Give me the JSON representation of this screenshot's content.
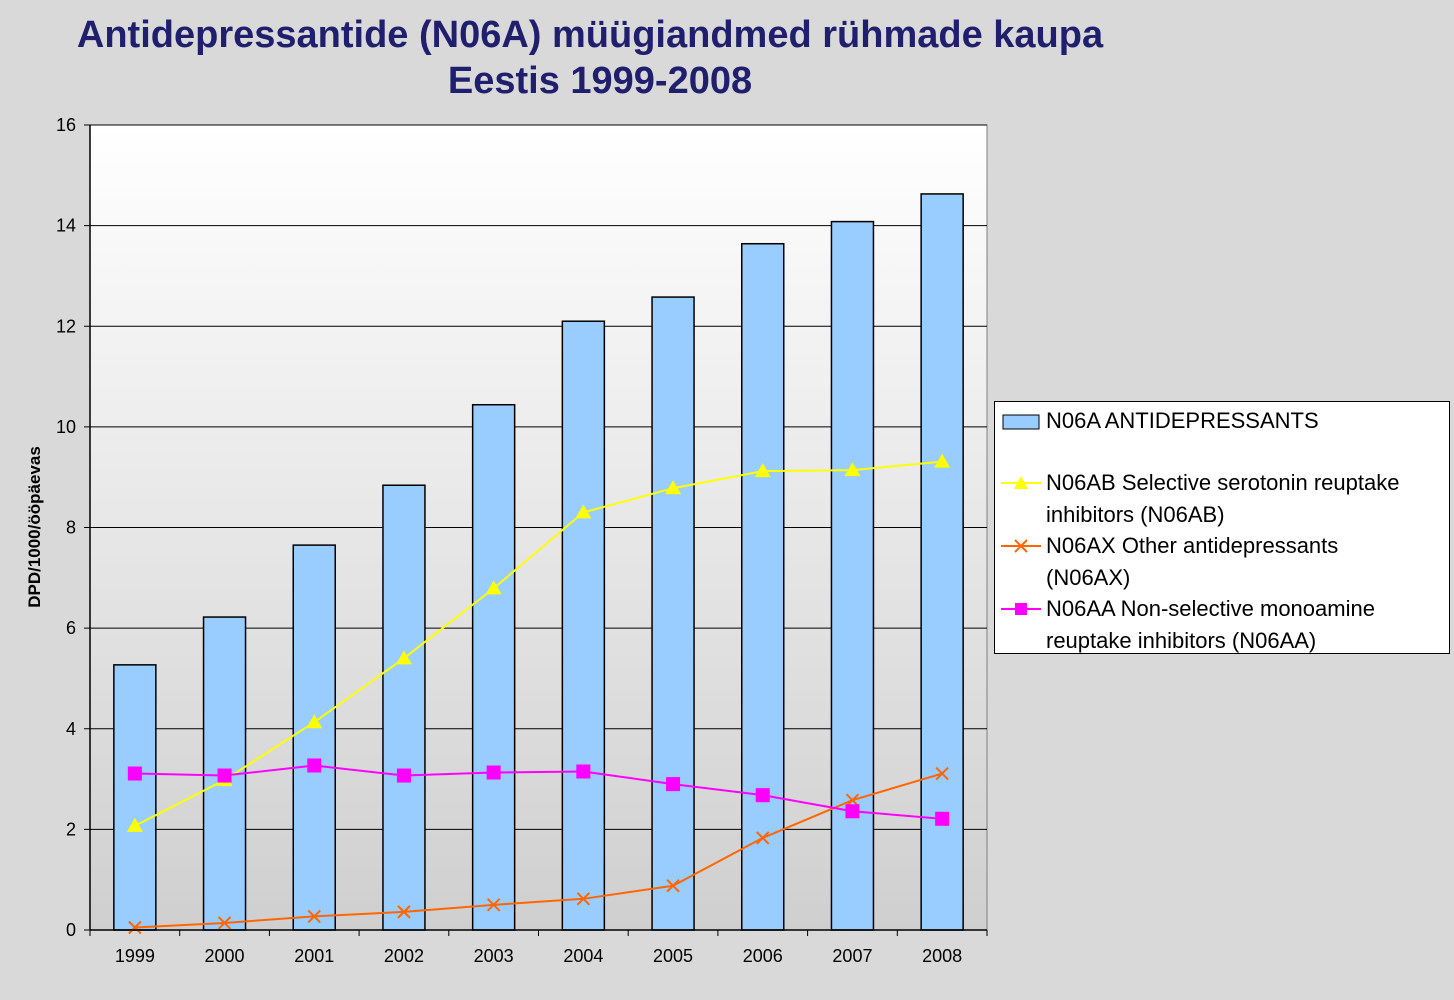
{
  "title": {
    "line1": "Antidepressantide (N06A) müügiandmed rühmade kaupa",
    "line2": "Eestis 1999-2008"
  },
  "colors": {
    "bar_fill": "#99ccff",
    "ssri": "#ffff00",
    "other": "#ff6600",
    "nonsel": "#ff00ff",
    "background": "#d9d9d9"
  },
  "chart_data": {
    "type": "bar",
    "ylabel": "DPD/1000/ööpäevas",
    "ylim": [
      0,
      16
    ],
    "yticks": [
      0,
      2,
      4,
      6,
      8,
      10,
      12,
      14,
      16
    ],
    "categories": [
      "1999",
      "2000",
      "2001",
      "2002",
      "2003",
      "2004",
      "2005",
      "2006",
      "2007",
      "2008"
    ],
    "grid": true,
    "legend_position": "right",
    "series": [
      {
        "name": "N06A ANTIDEPRESSANTS",
        "type": "bar",
        "color": "#99ccff",
        "values": [
          5.27,
          6.22,
          7.65,
          8.84,
          10.44,
          12.1,
          12.58,
          13.64,
          14.08,
          14.63
        ]
      },
      {
        "name": "N06AB Selective serotonin reuptake inhibitors (N06AB)",
        "type": "line",
        "marker": "triangle",
        "color": "#ffff00",
        "values": [
          2.07,
          2.98,
          4.13,
          5.4,
          6.79,
          8.3,
          8.78,
          9.12,
          9.14,
          9.31
        ]
      },
      {
        "name": "N06AX Other antidepressants (N06AX)",
        "type": "line",
        "marker": "x",
        "color": "#ff6600",
        "values": [
          0.05,
          0.14,
          0.27,
          0.36,
          0.5,
          0.62,
          0.88,
          1.83,
          2.58,
          3.11
        ]
      },
      {
        "name": "N06AA Non-selective monoamine reuptake inhibitors (N06AA)",
        "type": "line",
        "marker": "square",
        "color": "#ff00ff",
        "values": [
          3.11,
          3.07,
          3.27,
          3.07,
          3.13,
          3.15,
          2.9,
          2.68,
          2.36,
          2.21
        ]
      }
    ]
  },
  "legend": {
    "items": [
      {
        "line1": "N06A ANTIDEPRESSANTS",
        "line2": ""
      },
      {
        "line1": "N06AB Selective serotonin reuptake",
        "line2": "inhibitors (N06AB)"
      },
      {
        "line1": "N06AX Other antidepressants",
        "line2": "(N06AX)"
      },
      {
        "line1": "N06AA Non-selective monoamine",
        "line2": "reuptake inhibitors (N06AA)"
      }
    ]
  }
}
